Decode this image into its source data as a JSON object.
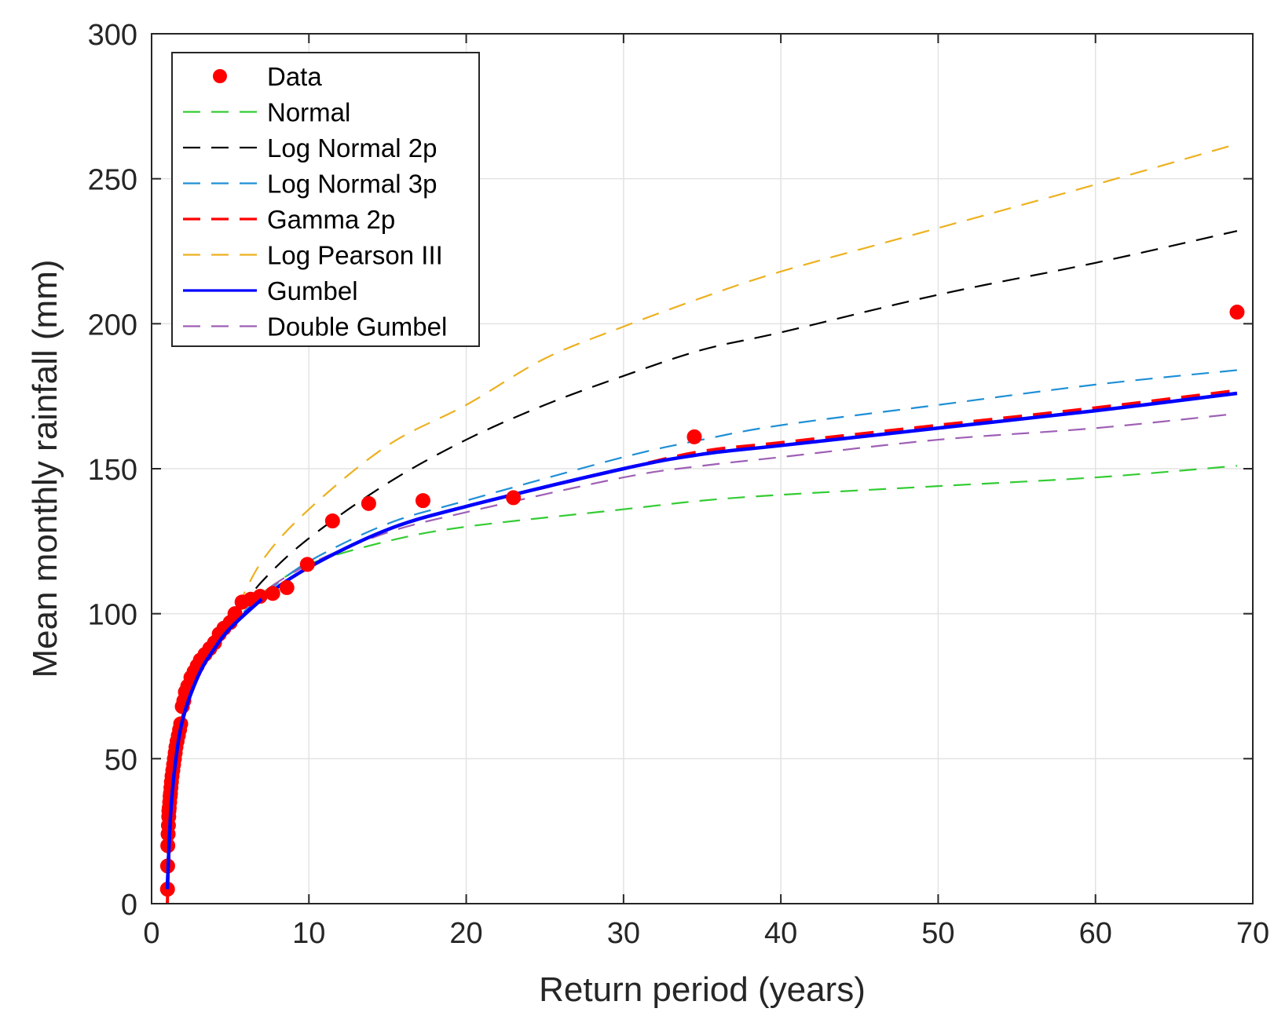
{
  "chart_data": {
    "type": "line",
    "title": "",
    "xlabel": "Return period (years)",
    "ylabel": "Mean monthly rainfall (mm)",
    "xlim": [
      0,
      70
    ],
    "ylim": [
      0,
      300
    ],
    "xticks": [
      0,
      10,
      20,
      30,
      40,
      50,
      60,
      70
    ],
    "yticks": [
      0,
      50,
      100,
      150,
      200,
      250,
      300
    ],
    "grid": true,
    "legend_position": "top-left",
    "colors": {
      "data": "#ff0000",
      "normal": "#33cc33",
      "lognormal2p": "#000000",
      "lognormal3p": "#1f8fd6",
      "gamma2p": "#ff0000",
      "logpearson3": "#edb120",
      "gumbel": "#0000ff",
      "doublegumbel": "#9e5fb5"
    },
    "data_points": {
      "name": "Data",
      "x": [
        1.01,
        1.02,
        1.03,
        1.05,
        1.07,
        1.09,
        1.1,
        1.12,
        1.15,
        1.18,
        1.2,
        1.23,
        1.26,
        1.3,
        1.35,
        1.4,
        1.45,
        1.5,
        1.55,
        1.62,
        1.7,
        1.78,
        1.85,
        1.95,
        2.05,
        2.15,
        2.3,
        2.5,
        2.7,
        2.9,
        3.1,
        3.4,
        3.7,
        4.0,
        4.3,
        4.6,
        5.0,
        5.3,
        5.75,
        6.3,
        6.9,
        7.7,
        8.6,
        9.9,
        11.5,
        13.8,
        17.25,
        23,
        34.5,
        69
      ],
      "y": [
        5,
        13,
        20,
        24,
        27,
        30,
        32,
        33,
        35,
        37,
        38,
        40,
        42,
        44,
        46,
        48,
        50,
        52,
        54,
        56,
        58,
        60,
        62,
        68,
        70,
        73,
        75,
        78,
        80,
        82,
        84,
        86,
        88,
        90,
        93,
        95,
        97,
        100,
        104,
        105,
        106,
        107,
        109,
        117,
        132,
        138,
        139,
        140,
        161,
        204
      ]
    },
    "series": [
      {
        "name": "Normal",
        "style": "dashed",
        "x": [
          1,
          1.2,
          1.5,
          2,
          3,
          4,
          5,
          7,
          10,
          15,
          20,
          30,
          35,
          40,
          50,
          60,
          69
        ],
        "y": [
          0,
          30,
          50,
          67,
          83,
          92,
          98,
          107,
          117,
          125,
          130,
          136,
          139,
          141,
          144,
          147,
          151
        ]
      },
      {
        "name": "Log Normal 2p",
        "style": "dashed",
        "x": [
          1,
          1.2,
          1.5,
          2,
          3,
          4,
          5,
          7,
          10,
          15,
          20,
          25,
          30,
          35,
          40,
          50,
          60,
          69
        ],
        "y": [
          0,
          30,
          50,
          68,
          84,
          92,
          97,
          111,
          126,
          145,
          160,
          172,
          182,
          191,
          197,
          210,
          221,
          232
        ]
      },
      {
        "name": "Log Normal 3p",
        "style": "dashed",
        "x": [
          1,
          1.2,
          1.5,
          2,
          3,
          4,
          5,
          7,
          10,
          15,
          20,
          30,
          35,
          40,
          50,
          60,
          69
        ],
        "y": [
          0,
          30,
          48,
          65,
          80,
          89,
          96,
          106,
          118,
          131,
          139,
          154,
          160,
          165,
          172,
          179,
          184
        ]
      },
      {
        "name": "Gamma 2p",
        "style": "dashed",
        "x": [
          1,
          1.2,
          1.5,
          2,
          3,
          4,
          5,
          7,
          10,
          15,
          20,
          30,
          35,
          40,
          50,
          60,
          69
        ],
        "y": [
          0,
          30,
          48,
          65,
          80,
          89,
          95,
          105,
          116,
          129,
          137,
          150,
          156,
          159,
          165,
          171,
          177
        ]
      },
      {
        "name": "Log Pearson III",
        "style": "dashed",
        "x": [
          1,
          1.2,
          1.5,
          2,
          3,
          4,
          5,
          7,
          10,
          15,
          20,
          25,
          30,
          35,
          40,
          50,
          60,
          69
        ],
        "y": [
          0,
          28,
          47,
          63,
          80,
          89,
          97,
          118,
          136,
          158,
          172,
          188,
          199,
          209,
          218,
          233,
          248,
          262
        ]
      },
      {
        "name": "Gumbel",
        "style": "solid",
        "x": [
          1,
          1.2,
          1.5,
          2,
          3,
          4,
          5,
          7,
          10,
          15,
          20,
          30,
          35,
          40,
          50,
          60,
          69
        ],
        "y": [
          5,
          30,
          48,
          64,
          79,
          88,
          95,
          105,
          116,
          129,
          137,
          150,
          155,
          158,
          164,
          170,
          176
        ]
      },
      {
        "name": "Double Gumbel",
        "style": "dashed",
        "x": [
          1,
          1.2,
          1.5,
          2,
          3,
          4,
          5,
          7,
          10,
          15,
          20,
          30,
          35,
          40,
          50,
          60,
          69
        ],
        "y": [
          3,
          30,
          49,
          66,
          81,
          90,
          97,
          107,
          117,
          128,
          135,
          147,
          151,
          154,
          160,
          164,
          169
        ]
      }
    ],
    "legend": {
      "entries": [
        "Data",
        "Normal",
        "Log Normal 2p",
        "Log Normal 3p",
        "Gamma 2p",
        "Log Pearson III",
        "Gumbel",
        "Double Gumbel"
      ]
    }
  }
}
